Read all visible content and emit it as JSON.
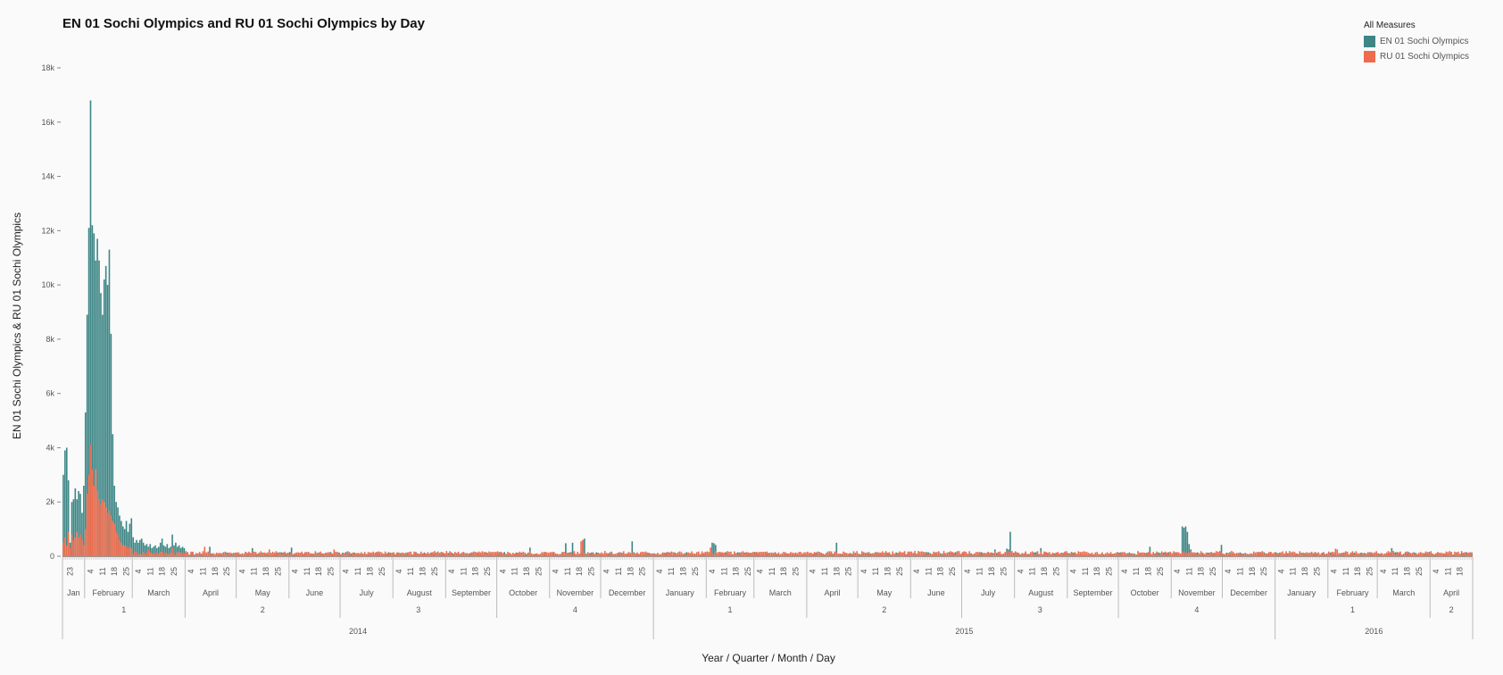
{
  "chart_data": {
    "type": "bar",
    "title": "EN 01 Sochi Olympics and RU 01 Sochi Olympics by Day",
    "xlabel": "Year / Quarter / Month / Day",
    "ylabel": "EN 01 Sochi Olympics & RU 01 Sochi Olympics",
    "ylim": [
      0,
      18000
    ],
    "yticks": [
      0,
      2000,
      4000,
      6000,
      8000,
      10000,
      12000,
      14000,
      16000,
      18000
    ],
    "ytick_labels": [
      "0",
      "2k",
      "4k",
      "6k",
      "8k",
      "10k",
      "12k",
      "14k",
      "16k",
      "18k"
    ],
    "x_start": "2014-01-19",
    "x_end": "2016-04-25",
    "grid": false,
    "legend": {
      "title": "All Measures",
      "placement": "top-right",
      "entries": [
        {
          "name": "EN 01 Sochi Olympics",
          "color": "#3e8686"
        },
        {
          "name": "RU 01 Sochi Olympics",
          "color": "#ee6c4d"
        }
      ]
    },
    "years": [
      {
        "label": "2014",
        "start": "2014-01-19",
        "end": "2014-12-31"
      },
      {
        "label": "2015",
        "start": "2015-01-01",
        "end": "2015-12-31"
      },
      {
        "label": "2016",
        "start": "2016-01-01",
        "end": "2016-04-25"
      }
    ],
    "quarters": [
      {
        "label": "1",
        "start": "2014-01-19",
        "end": "2014-03-31"
      },
      {
        "label": "2",
        "start": "2014-04-01",
        "end": "2014-06-30"
      },
      {
        "label": "3",
        "start": "2014-07-01",
        "end": "2014-09-30"
      },
      {
        "label": "4",
        "start": "2014-10-01",
        "end": "2014-12-31"
      },
      {
        "label": "1",
        "start": "2015-01-01",
        "end": "2015-03-31"
      },
      {
        "label": "2",
        "start": "2015-04-01",
        "end": "2015-06-30"
      },
      {
        "label": "3",
        "start": "2015-07-01",
        "end": "2015-09-30"
      },
      {
        "label": "4",
        "start": "2015-10-01",
        "end": "2015-12-31"
      },
      {
        "label": "1",
        "start": "2016-01-01",
        "end": "2016-03-31"
      },
      {
        "label": "2",
        "start": "2016-04-01",
        "end": "2016-04-25"
      }
    ],
    "months": [
      {
        "label": "Jan",
        "start": "2014-01-19",
        "end": "2014-01-31",
        "days": [
          23
        ]
      },
      {
        "label": "February",
        "start": "2014-02-01",
        "end": "2014-02-28",
        "days": [
          4,
          11,
          18,
          25
        ]
      },
      {
        "label": "March",
        "start": "2014-03-01",
        "end": "2014-03-31",
        "days": [
          4,
          11,
          18,
          25
        ]
      },
      {
        "label": "April",
        "start": "2014-04-01",
        "end": "2014-04-30",
        "days": [
          4,
          11,
          18,
          25
        ]
      },
      {
        "label": "May",
        "start": "2014-05-01",
        "end": "2014-05-31",
        "days": [
          4,
          11,
          18,
          25
        ]
      },
      {
        "label": "June",
        "start": "2014-06-01",
        "end": "2014-06-30",
        "days": [
          4,
          11,
          18,
          25
        ]
      },
      {
        "label": "July",
        "start": "2014-07-01",
        "end": "2014-07-31",
        "days": [
          4,
          11,
          18,
          25
        ]
      },
      {
        "label": "August",
        "start": "2014-08-01",
        "end": "2014-08-31",
        "days": [
          4,
          11,
          18,
          25
        ]
      },
      {
        "label": "September",
        "start": "2014-09-01",
        "end": "2014-09-30",
        "days": [
          4,
          11,
          18,
          25
        ]
      },
      {
        "label": "October",
        "start": "2014-10-01",
        "end": "2014-10-31",
        "days": [
          4,
          11,
          18,
          25
        ]
      },
      {
        "label": "November",
        "start": "2014-11-01",
        "end": "2014-11-30",
        "days": [
          4,
          11,
          18,
          25
        ]
      },
      {
        "label": "December",
        "start": "2014-12-01",
        "end": "2014-12-31",
        "days": [
          4,
          11,
          18,
          25
        ]
      },
      {
        "label": "January",
        "start": "2015-01-01",
        "end": "2015-01-31",
        "days": [
          4,
          11,
          18,
          25
        ]
      },
      {
        "label": "February",
        "start": "2015-02-01",
        "end": "2015-02-28",
        "days": [
          4,
          11,
          18,
          25
        ]
      },
      {
        "label": "March",
        "start": "2015-03-01",
        "end": "2015-03-31",
        "days": [
          4,
          11,
          18,
          25
        ]
      },
      {
        "label": "April",
        "start": "2015-04-01",
        "end": "2015-04-30",
        "days": [
          4,
          11,
          18,
          25
        ]
      },
      {
        "label": "May",
        "start": "2015-05-01",
        "end": "2015-05-31",
        "days": [
          4,
          11,
          18,
          25
        ]
      },
      {
        "label": "June",
        "start": "2015-06-01",
        "end": "2015-06-30",
        "days": [
          4,
          11,
          18,
          25
        ]
      },
      {
        "label": "July",
        "start": "2015-07-01",
        "end": "2015-07-31",
        "days": [
          4,
          11,
          18,
          25
        ]
      },
      {
        "label": "August",
        "start": "2015-08-01",
        "end": "2015-08-31",
        "days": [
          4,
          11,
          18,
          25
        ]
      },
      {
        "label": "September",
        "start": "2015-09-01",
        "end": "2015-09-30",
        "days": [
          4,
          11,
          18,
          25
        ]
      },
      {
        "label": "October",
        "start": "2015-10-01",
        "end": "2015-10-31",
        "days": [
          4,
          11,
          18,
          25
        ]
      },
      {
        "label": "November",
        "start": "2015-11-01",
        "end": "2015-11-30",
        "days": [
          4,
          11,
          18,
          25
        ]
      },
      {
        "label": "December",
        "start": "2015-12-01",
        "end": "2015-12-31",
        "days": [
          4,
          11,
          18,
          25
        ]
      },
      {
        "label": "January",
        "start": "2016-01-01",
        "end": "2016-01-31",
        "days": [
          4,
          11,
          18,
          25
        ]
      },
      {
        "label": "February",
        "start": "2016-02-01",
        "end": "2016-02-29",
        "days": [
          4,
          11,
          18,
          25
        ]
      },
      {
        "label": "March",
        "start": "2016-03-01",
        "end": "2016-03-31",
        "days": [
          4,
          11,
          18,
          25
        ]
      },
      {
        "label": "April",
        "start": "2016-04-01",
        "end": "2016-04-25",
        "days": [
          4,
          11,
          18
        ]
      }
    ],
    "series": [
      {
        "name": "EN 01 Sochi Olympics",
        "color": "#3e8686",
        "points": [
          [
            "2014-01-19",
            3000
          ],
          [
            "2014-01-20",
            3900
          ],
          [
            "2014-01-21",
            4000
          ],
          [
            "2014-01-22",
            2800
          ],
          [
            "2014-01-23",
            500
          ],
          [
            "2014-01-24",
            2000
          ],
          [
            "2014-01-25",
            2100
          ],
          [
            "2014-01-26",
            2500
          ],
          [
            "2014-01-27",
            2100
          ],
          [
            "2014-01-28",
            2400
          ],
          [
            "2014-01-29",
            2300
          ],
          [
            "2014-01-30",
            1600
          ],
          [
            "2014-01-31",
            2600
          ],
          [
            "2014-02-01",
            5300
          ],
          [
            "2014-02-02",
            8900
          ],
          [
            "2014-02-03",
            12100
          ],
          [
            "2014-02-04",
            16800
          ],
          [
            "2014-02-05",
            12200
          ],
          [
            "2014-02-06",
            11900
          ],
          [
            "2014-02-07",
            10900
          ],
          [
            "2014-02-08",
            11700
          ],
          [
            "2014-02-09",
            10900
          ],
          [
            "2014-02-10",
            9700
          ],
          [
            "2014-02-11",
            8900
          ],
          [
            "2014-02-12",
            10200
          ],
          [
            "2014-02-13",
            10700
          ],
          [
            "2014-02-14",
            10000
          ],
          [
            "2014-02-15",
            11300
          ],
          [
            "2014-02-16",
            8200
          ],
          [
            "2014-02-17",
            4500
          ],
          [
            "2014-02-18",
            2600
          ],
          [
            "2014-02-19",
            2000
          ],
          [
            "2014-02-20",
            1800
          ],
          [
            "2014-02-21",
            1500
          ],
          [
            "2014-02-22",
            1300
          ],
          [
            "2014-02-23",
            1100
          ],
          [
            "2014-02-24",
            1000
          ],
          [
            "2014-02-25",
            1300
          ],
          [
            "2014-02-26",
            900
          ],
          [
            "2014-02-27",
            1200
          ],
          [
            "2014-02-28",
            1400
          ],
          [
            "2014-03-01",
            700
          ],
          [
            "2014-03-02",
            500
          ],
          [
            "2014-03-03",
            600
          ],
          [
            "2014-03-04",
            500
          ],
          [
            "2014-03-05",
            600
          ],
          [
            "2014-03-06",
            650
          ],
          [
            "2014-03-07",
            500
          ],
          [
            "2014-03-08",
            400
          ],
          [
            "2014-03-09",
            450
          ],
          [
            "2014-03-10",
            350
          ],
          [
            "2014-03-11",
            450
          ],
          [
            "2014-03-12",
            300
          ],
          [
            "2014-03-13",
            350
          ],
          [
            "2014-03-14",
            400
          ],
          [
            "2014-03-15",
            300
          ],
          [
            "2014-03-16",
            350
          ],
          [
            "2014-03-17",
            500
          ],
          [
            "2014-03-18",
            650
          ],
          [
            "2014-03-19",
            400
          ],
          [
            "2014-03-20",
            350
          ],
          [
            "2014-03-21",
            450
          ],
          [
            "2014-03-22",
            300
          ],
          [
            "2014-03-23",
            350
          ],
          [
            "2014-03-24",
            800
          ],
          [
            "2014-03-25",
            400
          ],
          [
            "2014-03-26",
            500
          ],
          [
            "2014-03-27",
            350
          ],
          [
            "2014-03-28",
            400
          ],
          [
            "2014-03-29",
            300
          ],
          [
            "2014-03-30",
            350
          ],
          [
            "2014-03-31",
            300
          ],
          [
            "2014-04-15",
            350
          ],
          [
            "2014-05-10",
            300
          ],
          [
            "2014-06-02",
            320
          ],
          [
            "2014-10-20",
            320
          ],
          [
            "2014-11-10",
            480
          ],
          [
            "2014-11-14",
            500
          ],
          [
            "2014-11-20",
            600
          ],
          [
            "2014-11-21",
            650
          ],
          [
            "2014-12-19",
            550
          ],
          [
            "2015-02-04",
            500
          ],
          [
            "2015-02-05",
            480
          ],
          [
            "2015-02-06",
            420
          ],
          [
            "2015-04-18",
            500
          ],
          [
            "2015-07-20",
            250
          ],
          [
            "2015-07-27",
            280
          ],
          [
            "2015-07-28",
            250
          ],
          [
            "2015-07-29",
            900
          ],
          [
            "2015-08-16",
            300
          ],
          [
            "2015-10-19",
            350
          ],
          [
            "2015-11-07",
            1100
          ],
          [
            "2015-11-08",
            1050
          ],
          [
            "2015-11-09",
            1100
          ],
          [
            "2015-11-10",
            900
          ],
          [
            "2015-11-11",
            450
          ],
          [
            "2015-11-12",
            250
          ],
          [
            "2015-11-30",
            420
          ],
          [
            "2016-03-09",
            300
          ]
        ],
        "baseline": 120
      },
      {
        "name": "RU 01 Sochi Olympics",
        "color": "#ee6c4d",
        "points": [
          [
            "2014-01-19",
            500
          ],
          [
            "2014-01-20",
            700
          ],
          [
            "2014-01-21",
            400
          ],
          [
            "2014-01-22",
            900
          ],
          [
            "2014-01-23",
            300
          ],
          [
            "2014-01-24",
            800
          ],
          [
            "2014-01-25",
            600
          ],
          [
            "2014-01-26",
            700
          ],
          [
            "2014-01-27",
            900
          ],
          [
            "2014-01-28",
            700
          ],
          [
            "2014-01-29",
            800
          ],
          [
            "2014-01-30",
            600
          ],
          [
            "2014-01-31",
            400
          ],
          [
            "2014-02-01",
            1000
          ],
          [
            "2014-02-02",
            2300
          ],
          [
            "2014-02-03",
            3000
          ],
          [
            "2014-02-04",
            4100
          ],
          [
            "2014-02-05",
            3200
          ],
          [
            "2014-02-06",
            2600
          ],
          [
            "2014-02-07",
            3200
          ],
          [
            "2014-02-08",
            2400
          ],
          [
            "2014-02-09",
            2100
          ],
          [
            "2014-02-10",
            1900
          ],
          [
            "2014-02-11",
            2100
          ],
          [
            "2014-02-12",
            2000
          ],
          [
            "2014-02-13",
            1800
          ],
          [
            "2014-02-14",
            1600
          ],
          [
            "2014-02-15",
            1700
          ],
          [
            "2014-02-16",
            1500
          ],
          [
            "2014-02-17",
            1300
          ],
          [
            "2014-02-18",
            1200
          ],
          [
            "2014-02-19",
            900
          ],
          [
            "2014-02-20",
            800
          ],
          [
            "2014-02-21",
            600
          ],
          [
            "2014-02-22",
            500
          ],
          [
            "2014-02-23",
            400
          ],
          [
            "2014-02-24",
            400
          ],
          [
            "2014-02-25",
            350
          ],
          [
            "2014-02-26",
            300
          ],
          [
            "2014-02-27",
            350
          ],
          [
            "2014-02-28",
            300
          ],
          [
            "2014-03-10",
            250
          ],
          [
            "2014-03-24",
            300
          ],
          [
            "2014-04-12",
            350
          ],
          [
            "2014-05-20",
            250
          ],
          [
            "2014-06-27",
            250
          ],
          [
            "2014-11-19",
            550
          ],
          [
            "2014-11-20",
            600
          ],
          [
            "2015-02-03",
            320
          ],
          [
            "2015-08-11",
            180
          ],
          [
            "2016-02-05",
            280
          ],
          [
            "2016-02-06",
            250
          ]
        ],
        "baseline": 150
      }
    ]
  }
}
